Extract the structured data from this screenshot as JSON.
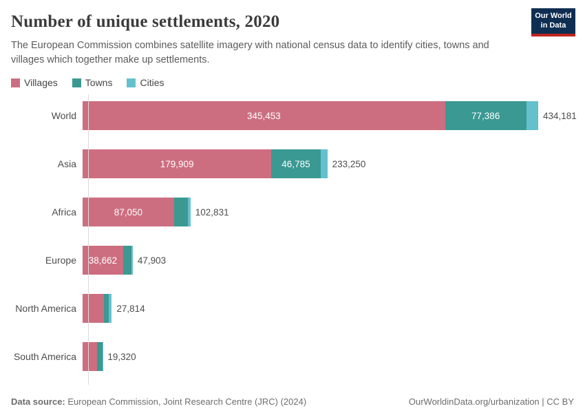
{
  "header": {
    "title": "Number of unique settlements, 2020",
    "subtitle": "The European Commission combines satellite imagery with national census data to identify cities, towns and villages which together make up settlements."
  },
  "logo": {
    "line1": "Our World",
    "line2": "in Data",
    "bg_color": "#0f2e52",
    "stripe_color": "#c0241f"
  },
  "legend": [
    {
      "label": "Villages",
      "color": "#cd6e80"
    },
    {
      "label": "Towns",
      "color": "#3a9992"
    },
    {
      "label": "Cities",
      "color": "#65c0cd"
    }
  ],
  "footer": {
    "source_label": "Data source:",
    "source_text": "European Commission, Joint Research Centre (JRC) (2024)",
    "credit": "OurWorldinData.org/urbanization | CC BY"
  },
  "chart_data": {
    "type": "bar",
    "orientation": "horizontal",
    "stacked": true,
    "title": "Number of unique settlements, 2020",
    "series_names": [
      "Villages",
      "Towns",
      "Cities"
    ],
    "colors": {
      "Villages": "#cd6e80",
      "Towns": "#3a9992",
      "Cities": "#65c0cd"
    },
    "categories": [
      "World",
      "Asia",
      "Africa",
      "Europe",
      "North America",
      "South America"
    ],
    "xlim": [
      0,
      434181
    ],
    "grid": false,
    "legend_position": "top-left",
    "unlabeled_segments_estimated_from_pixels": true,
    "rows": [
      {
        "name": "World",
        "villages": 345453,
        "towns": 77386,
        "cities": 11342,
        "total": 434181,
        "labels": {
          "villages": "345,453",
          "towns": "77,386",
          "total": "434,181"
        }
      },
      {
        "name": "Asia",
        "villages": 179909,
        "towns": 46785,
        "cities": 6556,
        "total": 233250,
        "labels": {
          "villages": "179,909",
          "towns": "46,785",
          "total": "233,250"
        }
      },
      {
        "name": "Africa",
        "villages": 87050,
        "towns": 13100,
        "cities": 2681,
        "total": 102831,
        "labels": {
          "villages": "87,050",
          "towns": "",
          "total": "102,831"
        }
      },
      {
        "name": "Europe",
        "villages": 38662,
        "towns": 7900,
        "cities": 1341,
        "total": 47903,
        "labels": {
          "villages": "38,662",
          "towns": "",
          "total": "47,903"
        }
      },
      {
        "name": "North America",
        "villages": 20000,
        "towns": 5200,
        "cities": 2614,
        "total": 27814,
        "labels": {
          "villages": "",
          "towns": "",
          "total": "27,814"
        }
      },
      {
        "name": "South America",
        "villages": 13800,
        "towns": 4900,
        "cities": 620,
        "total": 19320,
        "labels": {
          "villages": "",
          "towns": "",
          "total": "19,320"
        }
      }
    ]
  }
}
